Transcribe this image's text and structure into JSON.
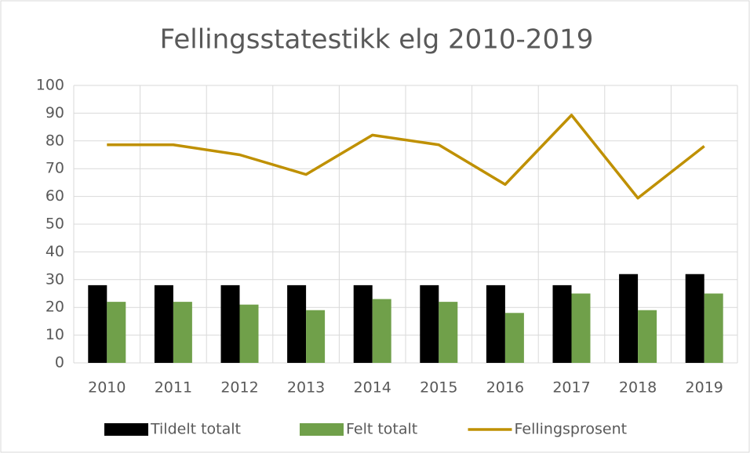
{
  "chart_data": {
    "type": "bar",
    "title": "Fellingsstatestikk elg 2010-2019",
    "categories": [
      "2010",
      "2011",
      "2012",
      "2013",
      "2014",
      "2015",
      "2016",
      "2017",
      "2018",
      "2019"
    ],
    "series": [
      {
        "name": "Tildelt totalt",
        "type": "bar",
        "color": "#000000",
        "values": [
          28,
          28,
          28,
          28,
          28,
          28,
          28,
          28,
          32,
          32
        ]
      },
      {
        "name": "Felt totalt",
        "type": "bar",
        "color": "#70a04a",
        "values": [
          22,
          22,
          21,
          19,
          23,
          22,
          18,
          25,
          19,
          25
        ]
      },
      {
        "name": "Fellingsprosent",
        "type": "line",
        "color": "#bf9000",
        "values": [
          78.6,
          78.6,
          75,
          67.9,
          82.1,
          78.6,
          64.3,
          89.3,
          59.4,
          78.1
        ]
      }
    ],
    "ylim": [
      0,
      100
    ],
    "yticks": [
      0,
      10,
      20,
      30,
      40,
      50,
      60,
      70,
      80,
      90,
      100
    ],
    "grid": true,
    "legend": "bottom"
  }
}
